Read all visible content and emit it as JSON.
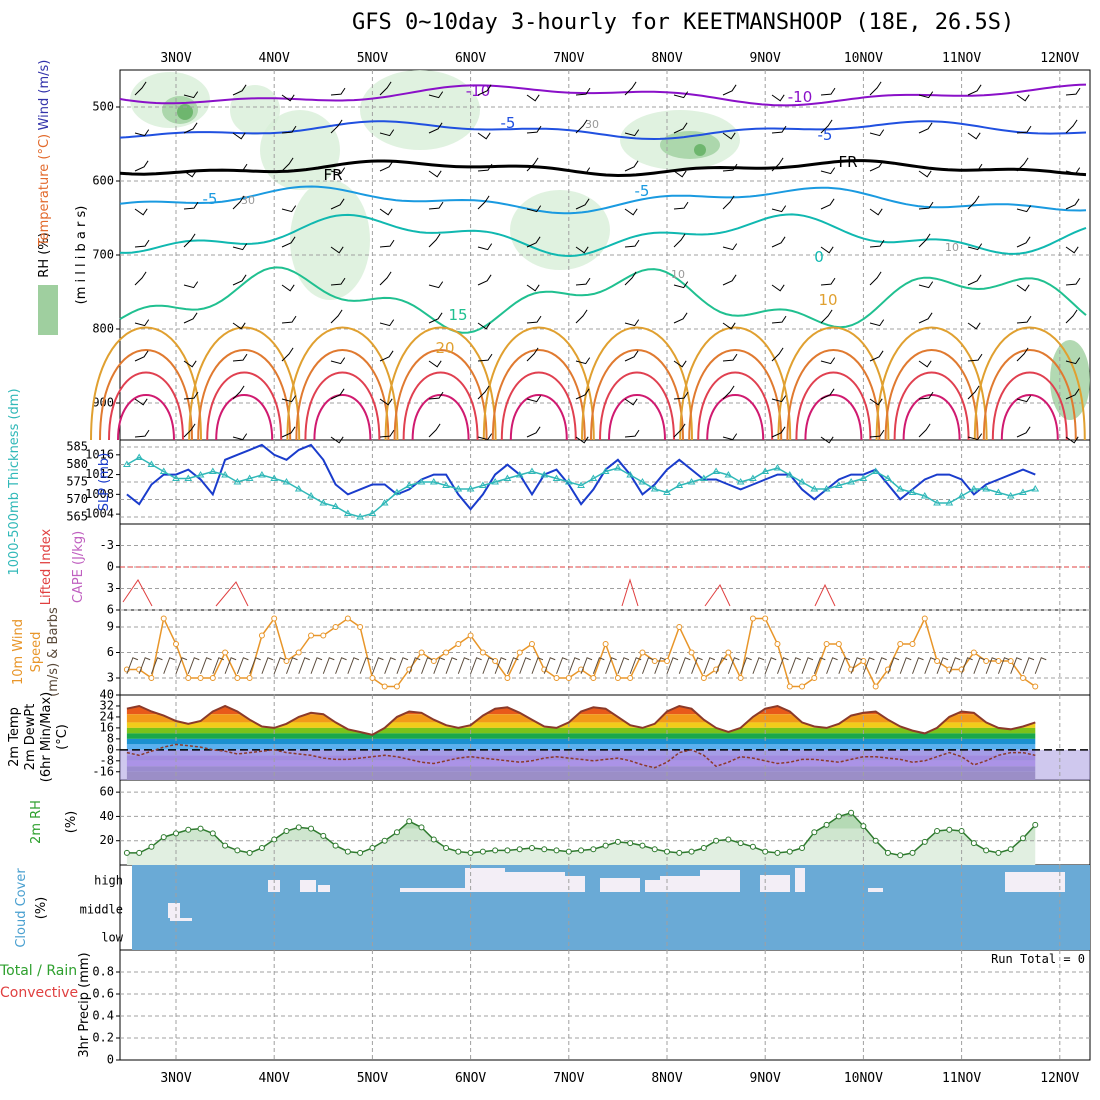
{
  "title": "GFS 0~10day 3-hourly for KEETMANSHOOP (18E, 26.5S)",
  "dates": [
    "3NOV",
    "4NOV",
    "5NOV",
    "6NOV",
    "7NOV",
    "8NOV",
    "9NOV",
    "10NOV",
    "11NOV",
    "12NOV"
  ],
  "chart_data": [
    {
      "type": "line",
      "panel": "upper-air",
      "ylabel_parts": [
        "RH (%)",
        "Temperature",
        "(°C)",
        "Wind (m/s)"
      ],
      "yaxis_label": "(m i l l i b a r s)",
      "yticks": [
        500,
        600,
        700,
        800,
        900
      ],
      "ylim": [
        950,
        450
      ],
      "contour_labels": [
        {
          "text": "-10",
          "color": "#8a10c8"
        },
        {
          "text": "-10",
          "color": "#8a10c8"
        },
        {
          "text": "-5",
          "color": "#2050e0"
        },
        {
          "text": "-5",
          "color": "#2050e0"
        },
        {
          "text": "-5",
          "color": "#1a9ae0"
        },
        {
          "text": "-5",
          "color": "#1a9ae0"
        },
        {
          "text": "FR",
          "color": "#000000"
        },
        {
          "text": "FR",
          "color": "#000000"
        },
        {
          "text": "0",
          "color": "#10b8b0"
        },
        {
          "text": "15",
          "color": "#20c090"
        },
        {
          "text": "20",
          "color": "#e0a030"
        },
        {
          "text": "10",
          "color": "#e0a030"
        },
        {
          "text": "30",
          "color": "#999999"
        },
        {
          "text": "30",
          "color": "#999999"
        },
        {
          "text": "10",
          "color": "#999999"
        },
        {
          "text": "10",
          "color": "#999999"
        }
      ]
    },
    {
      "type": "line",
      "panel": "slp-thickness",
      "ylabel_left": "1000-500mb Thickness (dm)",
      "ylabel_right": "SLP (mb)",
      "yticks_left": [
        565,
        570,
        575,
        580,
        585
      ],
      "yticks_right": [
        1004,
        1008,
        1012,
        1016
      ],
      "series": [
        {
          "name": "SLP (mb)",
          "color": "#1a3ccc",
          "values": [
            1008,
            1006,
            1010,
            1012,
            1012,
            1013,
            1011,
            1008,
            1015,
            1016,
            1017,
            1018,
            1016,
            1015,
            1017,
            1018,
            1015,
            1010,
            1008,
            1009,
            1010,
            1010,
            1008,
            1009,
            1011,
            1012,
            1012,
            1008,
            1005,
            1008,
            1012,
            1014,
            1012,
            1008,
            1012,
            1013,
            1010,
            1006,
            1009,
            1013,
            1015,
            1012,
            1008,
            1010,
            1013,
            1015,
            1013,
            1011,
            1011,
            1010,
            1009,
            1010,
            1011,
            1012,
            1012,
            1009,
            1007,
            1009,
            1011,
            1012,
            1012,
            1013,
            1010,
            1007,
            1009,
            1011,
            1012,
            1012,
            1011,
            1008,
            1010,
            1011,
            1012,
            1013,
            1012
          ]
        },
        {
          "name": "1000-500mb Thickness (dm)",
          "color": "#30b8b8",
          "values": [
            580,
            582,
            580,
            578,
            576,
            576,
            577,
            578,
            577,
            575,
            576,
            577,
            576,
            575,
            573,
            571,
            569,
            568,
            566,
            565,
            566,
            569,
            572,
            574,
            575,
            575,
            574,
            573,
            573,
            574,
            575,
            576,
            577,
            578,
            577,
            576,
            575,
            574,
            576,
            578,
            579,
            577,
            575,
            573,
            572,
            574,
            575,
            576,
            578,
            577,
            575,
            576,
            578,
            579,
            577,
            575,
            573,
            573,
            574,
            575,
            576,
            578,
            576,
            573,
            572,
            571,
            569,
            569,
            571,
            573,
            573,
            572,
            571,
            572,
            573
          ]
        }
      ]
    },
    {
      "type": "line",
      "panel": "cape-li",
      "ylabel": "Lifted Index",
      "ylabel2": "CAPE (J/kg)",
      "yticks": [
        -3,
        0,
        3,
        6
      ],
      "ylim": [
        -6,
        6
      ],
      "zero_line": 0
    },
    {
      "type": "line",
      "panel": "wind10m",
      "ylabel": "10m Wind Speed (m/s) & Barbs",
      "yticks": [
        3,
        6,
        9
      ],
      "ylim": [
        1,
        11
      ],
      "series": [
        {
          "name": "10m Wind Speed",
          "color": "#e8962a",
          "values": [
            4,
            4,
            3,
            10,
            7,
            3,
            3,
            3,
            6,
            3,
            3,
            8,
            10,
            5,
            6,
            8,
            8,
            9,
            10,
            9,
            3,
            2,
            2,
            4,
            6,
            5,
            6,
            7,
            8,
            6,
            5,
            3,
            6,
            7,
            4,
            3,
            3,
            4,
            3,
            7,
            3,
            3,
            6,
            5,
            5,
            9,
            6,
            3,
            4,
            6,
            3,
            10,
            10,
            7,
            2,
            2,
            3,
            7,
            7,
            4,
            5,
            2,
            4,
            7,
            7,
            10,
            5,
            4,
            4,
            6,
            5,
            5,
            5,
            3,
            2
          ]
        }
      ]
    },
    {
      "type": "area",
      "panel": "temp2m",
      "ylabel": "2m Temp 2m DewPt (6hr Min/Max) (°C)",
      "yticks": [
        -16,
        -8,
        0,
        8,
        16,
        24,
        32,
        40
      ],
      "ylim": [
        -22,
        40
      ],
      "series": [
        {
          "name": "2m Temp",
          "color": "#8b3a2a",
          "values": [
            30,
            32,
            28,
            25,
            21,
            19,
            21,
            28,
            32,
            28,
            22,
            17,
            16,
            19,
            24,
            27,
            26,
            20,
            15,
            13,
            11,
            16,
            24,
            28,
            27,
            22,
            18,
            16,
            18,
            25,
            30,
            31,
            27,
            22,
            17,
            16,
            20,
            28,
            31,
            30,
            24,
            18,
            16,
            19,
            28,
            32,
            30,
            22,
            16,
            13,
            16,
            24,
            30,
            32,
            28,
            20,
            17,
            16,
            19,
            25,
            27,
            28,
            22,
            17,
            14,
            12,
            16,
            24,
            28,
            27,
            20,
            16,
            15,
            17,
            20
          ]
        },
        {
          "name": "2m DewPt",
          "color": "#8b3a2a",
          "values": [
            -2,
            -4,
            -1,
            2,
            4,
            3,
            2,
            0,
            -1,
            -3,
            -2,
            -1,
            0,
            -2,
            -3,
            -4,
            -6,
            -7,
            -7,
            -6,
            -5,
            -4,
            -5,
            -7,
            -9,
            -10,
            -8,
            -6,
            -5,
            -6,
            -7,
            -8,
            -9,
            -8,
            -6,
            -5,
            -6,
            -7,
            -8,
            -7,
            -6,
            -8,
            -11,
            -13,
            -9,
            -2,
            0,
            -4,
            -12,
            -9,
            -5,
            -6,
            -8,
            -10,
            -9,
            -7,
            -7,
            -8,
            -9,
            -7,
            -5,
            -5,
            -6,
            -7,
            -9,
            -8,
            -5,
            -2,
            -5,
            -11,
            -8,
            -4,
            -2,
            -2,
            -4
          ]
        }
      ]
    },
    {
      "type": "area",
      "panel": "rh2m",
      "ylabel": "2m RH",
      "yunit": "(%)",
      "yticks": [
        20,
        40,
        60
      ],
      "ylim": [
        0,
        70
      ],
      "series": [
        {
          "name": "2m RH",
          "color": "#2e7a2e",
          "values": [
            10,
            10,
            15,
            23,
            26,
            29,
            30,
            26,
            16,
            12,
            10,
            14,
            21,
            28,
            31,
            30,
            24,
            16,
            11,
            10,
            14,
            20,
            27,
            36,
            31,
            21,
            14,
            11,
            10,
            11,
            12,
            12,
            13,
            14,
            13,
            12,
            11,
            12,
            13,
            16,
            19,
            18,
            16,
            13,
            11,
            10,
            11,
            14,
            20,
            21,
            18,
            15,
            11,
            10,
            11,
            14,
            27,
            33,
            40,
            43,
            32,
            20,
            10,
            8,
            10,
            19,
            28,
            29,
            28,
            18,
            12,
            10,
            13,
            22,
            33
          ]
        }
      ]
    },
    {
      "type": "heatmap",
      "panel": "cloud",
      "ylabel": "Cloud Cover",
      "yunit": "(%)",
      "levels": [
        "high",
        "middle",
        "low"
      ],
      "background": "#6aaad6",
      "cloud_color": "#f3eef6"
    },
    {
      "type": "bar",
      "panel": "precip",
      "ylabel_parts": [
        "Total / Rain",
        "Convective"
      ],
      "yaxis_label": "3hr Precip (mm)",
      "yticks": [
        0,
        0.2,
        0.4,
        0.6,
        0.8
      ],
      "ylim": [
        0,
        1
      ],
      "annotation": "Run Total = 0",
      "values": []
    }
  ],
  "colors": {
    "grid": "#a0a0a0",
    "rh_green_light": "#d8efd8",
    "rh_green_mid": "#9fcf9f",
    "rh_green_dark": "#5fae5f",
    "slp": "#1a3ccc",
    "thickness": "#30b8b8",
    "wind": "#e8962a",
    "li_line": "#e04040"
  },
  "labels": {
    "rh": "RH (%)",
    "temperature": "Temperature",
    "temp_unit": "(°C)",
    "wind": "Wind (m/s)",
    "millibars": "(m i l l i b a r s)",
    "thickness": "1000-500mb Thickness (dm)",
    "slp": "SLP (mb)",
    "li": "Lifted Index",
    "cape": "CAPE (J/kg)",
    "wind10_a": "10m Wind",
    "wind10_b": "Speed",
    "wind10_c": "(m/s) & Barbs",
    "temp_a": "2m Temp",
    "temp_b": "2m DewPt",
    "temp_c": "(6hr Min/Max)",
    "temp_d": "(°C)",
    "rh2m": "2m RH",
    "rh2m_unit": "(%)",
    "cloud": "Cloud Cover",
    "cloud_unit": "(%)",
    "precip_a": "Total / Rain",
    "precip_b": "Convective",
    "precip_c": "3hr Precip (mm)",
    "run_total": "Run Total = 0"
  }
}
